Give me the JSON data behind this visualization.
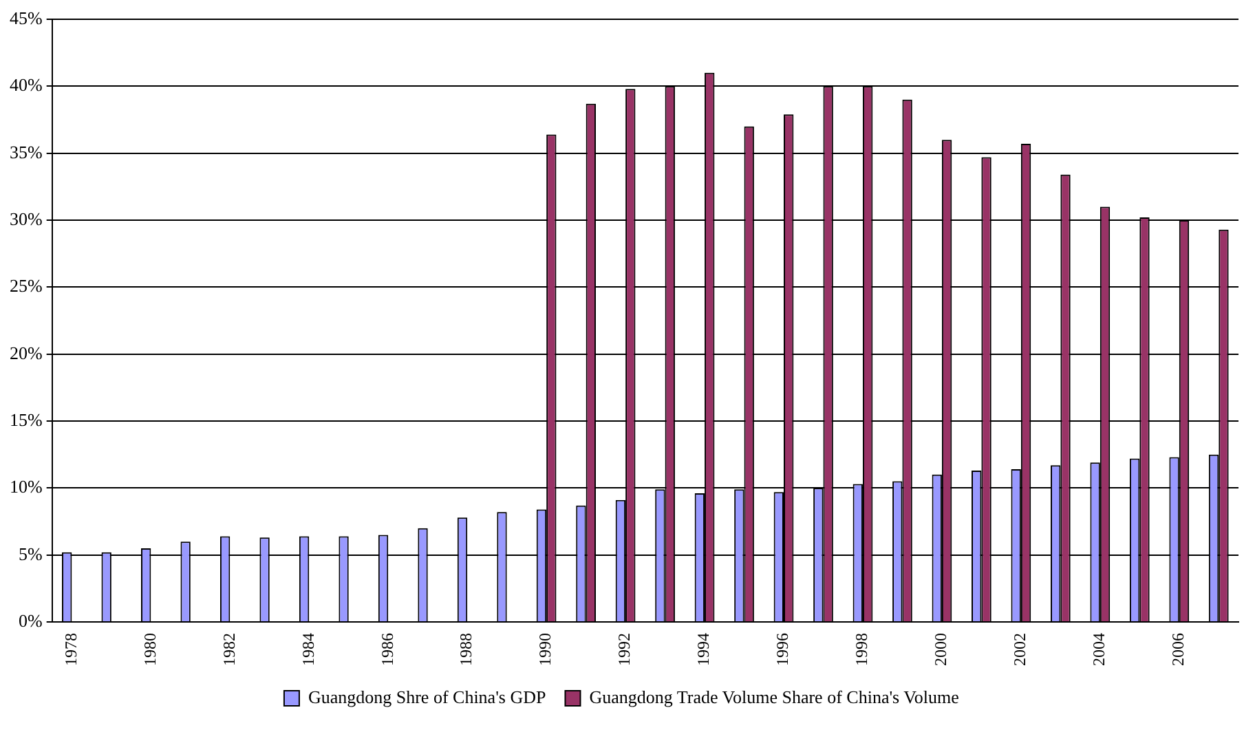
{
  "chart_data": {
    "type": "bar",
    "categories": [
      "1978",
      null,
      "1980",
      null,
      "1982",
      null,
      "1984",
      null,
      "1986",
      null,
      "1988",
      null,
      "1990",
      null,
      "1992",
      null,
      "1994",
      null,
      "1996",
      null,
      "1998",
      null,
      "2000",
      null,
      "2002",
      null,
      "2004",
      null,
      "2006",
      null
    ],
    "series": [
      {
        "name": "Guangdong Shre of China's GDP",
        "color": "#9999ff",
        "values": [
          5.2,
          5.2,
          5.5,
          6.0,
          6.4,
          6.3,
          6.4,
          6.4,
          6.5,
          7.0,
          7.8,
          8.2,
          8.4,
          8.7,
          9.1,
          9.9,
          9.6,
          9.9,
          9.7,
          10.0,
          10.3,
          10.5,
          11.0,
          11.3,
          11.4,
          11.7,
          11.9,
          12.2,
          12.3,
          12.5
        ]
      },
      {
        "name": "Guangdong Trade Volume Share of China's Volume",
        "color": "#993366",
        "values": [
          null,
          null,
          null,
          null,
          null,
          null,
          null,
          null,
          null,
          null,
          null,
          null,
          36.4,
          38.7,
          39.8,
          40.0,
          41.0,
          37.0,
          37.9,
          40.0,
          40.0,
          39.0,
          36.0,
          34.7,
          35.7,
          33.4,
          31.0,
          30.2,
          30.0,
          29.3
        ]
      }
    ],
    "ylim": [
      0,
      45
    ],
    "yticks": [
      {
        "value": 0,
        "label": "0%"
      },
      {
        "value": 5,
        "label": "5%"
      },
      {
        "value": 10,
        "label": "10%"
      },
      {
        "value": 15,
        "label": "15%"
      },
      {
        "value": 20,
        "label": "20%"
      },
      {
        "value": 25,
        "label": "25%"
      },
      {
        "value": 30,
        "label": "30%"
      },
      {
        "value": 35,
        "label": "35%"
      },
      {
        "value": 40,
        "label": "40%"
      },
      {
        "value": 45,
        "label": "45%"
      }
    ],
    "grid": "y",
    "legend": "bottom"
  }
}
